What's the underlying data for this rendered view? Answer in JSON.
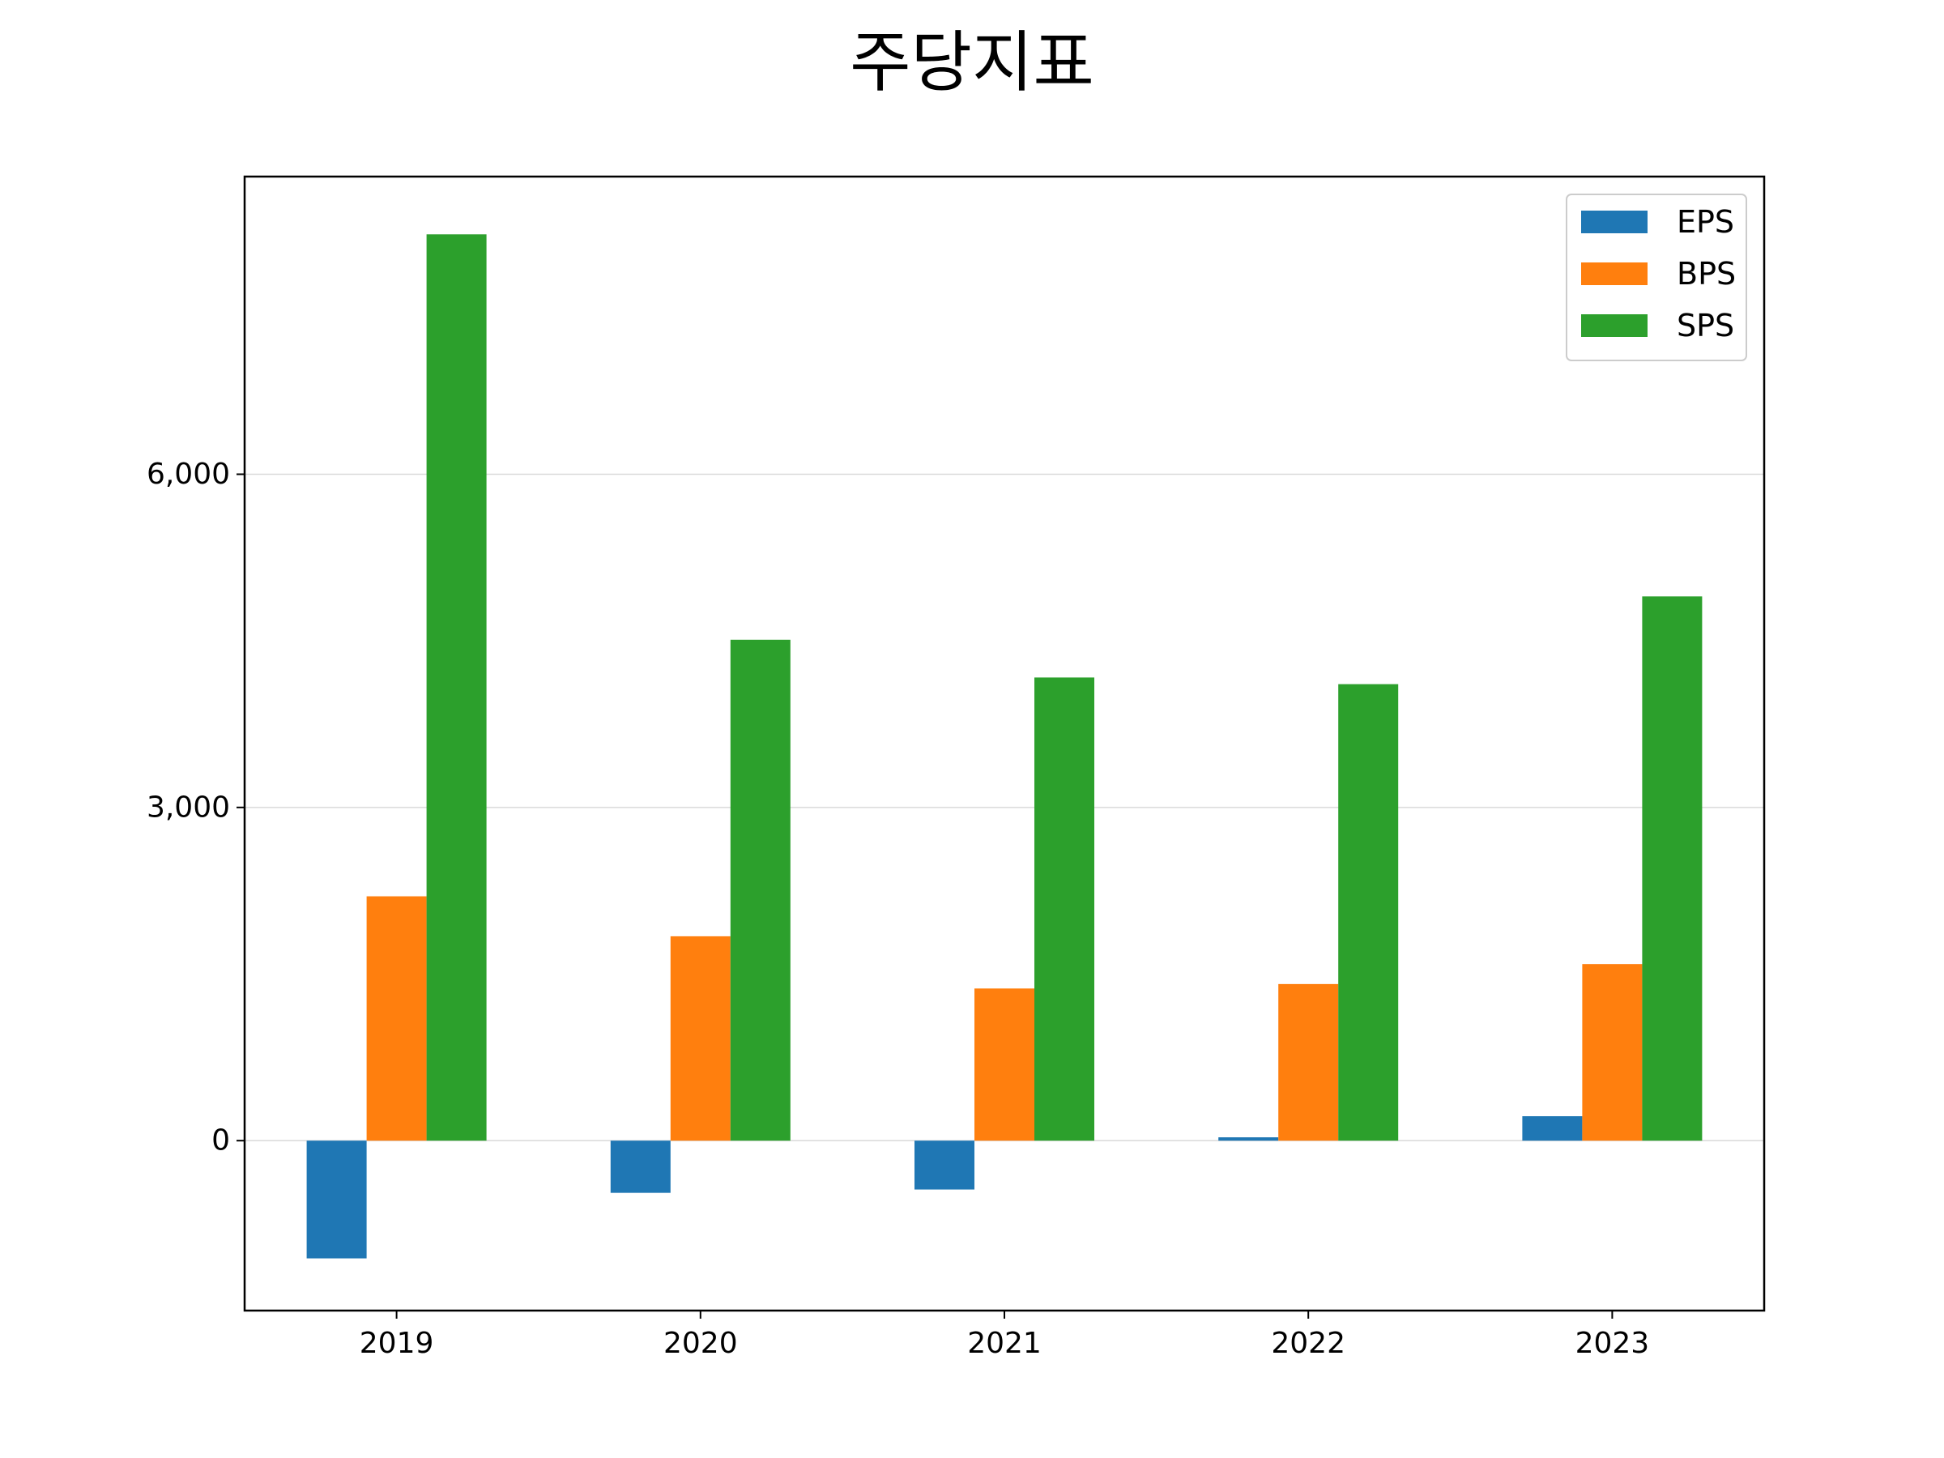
{
  "chart_data": {
    "type": "bar",
    "title": "주당지표",
    "xlabel": "",
    "ylabel": "",
    "categories": [
      "2019",
      "2020",
      "2021",
      "2022",
      "2023"
    ],
    "series": [
      {
        "name": "EPS",
        "color": "#1f77b4",
        "values": [
          -1060,
          -470,
          -440,
          30,
          220
        ]
      },
      {
        "name": "BPS",
        "color": "#ff7f0e",
        "values": [
          2200,
          1840,
          1370,
          1410,
          1590
        ]
      },
      {
        "name": "SPS",
        "color": "#2ca02c",
        "values": [
          8160,
          4510,
          4170,
          4110,
          4900
        ]
      }
    ],
    "ylim": [
      -1530,
      8680
    ],
    "yticks": [
      0,
      3000,
      6000
    ],
    "ytick_labels": [
      "0",
      "3,000",
      "6,000"
    ],
    "grid": "y-major",
    "legend_position": "top-right"
  }
}
